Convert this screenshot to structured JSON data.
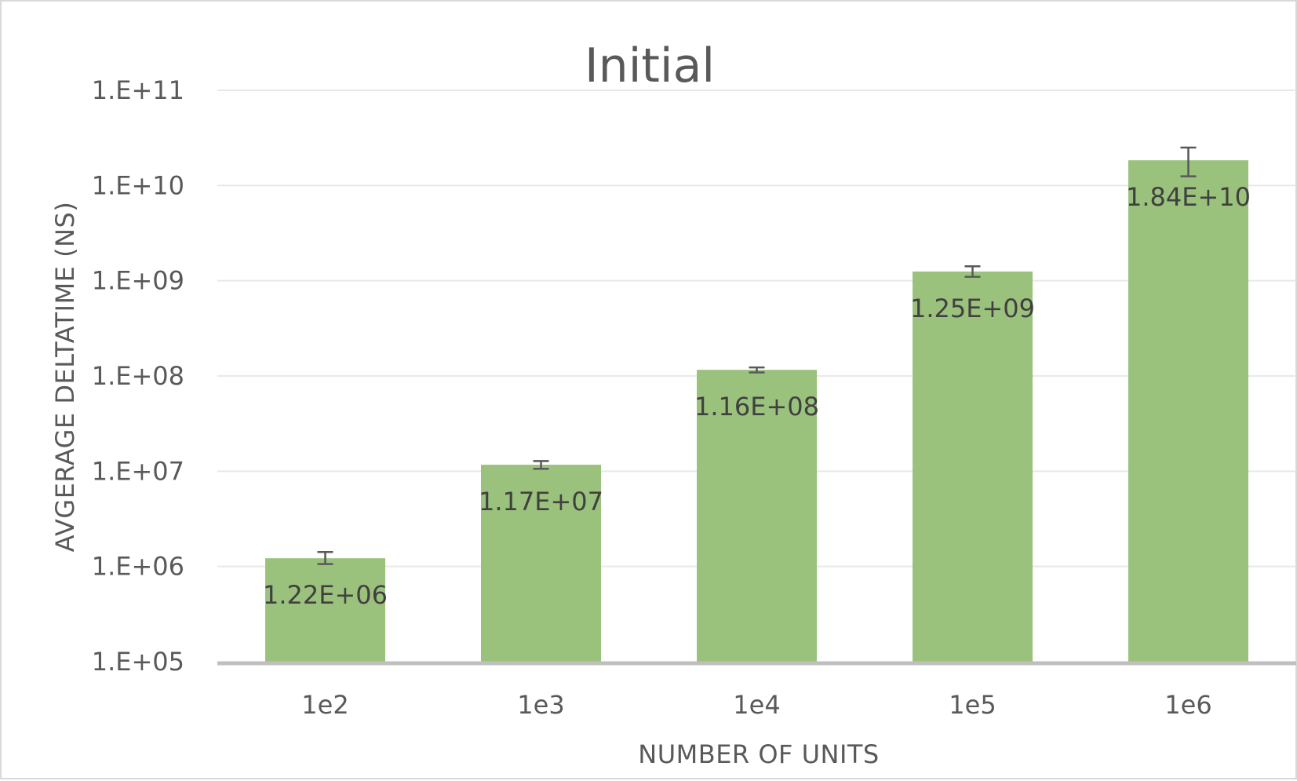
{
  "chart_data": {
    "type": "bar",
    "title": "Initial",
    "xlabel": "NUMBER OF UNITS",
    "ylabel": "AVGERAGE DELTATIME (NS)",
    "y_scale": "log",
    "ylim": [
      100000,
      100000000000
    ],
    "y_ticks": [
      100000,
      1000000,
      10000000,
      100000000,
      1000000000,
      10000000000,
      100000000000
    ],
    "y_tick_labels": [
      "1.E+05",
      "1.E+06",
      "1.E+07",
      "1.E+08",
      "1.E+09",
      "1.E+10",
      "1.E+11"
    ],
    "categories": [
      "1e2",
      "1e3",
      "1e4",
      "1e5",
      "1e6"
    ],
    "values": [
      1220000,
      11700000,
      116000000,
      1250000000,
      18400000000
    ],
    "data_labels": [
      "1.22E+06",
      "1.17E+07",
      "1.16E+08",
      "1.25E+09",
      "1.84E+10"
    ],
    "error_bars": {
      "lower": [
        1060000,
        10600000,
        109000000,
        1100000000,
        12500000000
      ],
      "upper": [
        1420000,
        12800000,
        123000000,
        1420000000,
        25000000000
      ]
    },
    "grid": true,
    "legend": "none",
    "colors": {
      "bar": "#9bc27d",
      "gridline": "#e8e8e8",
      "baseline": "#bfbfbf",
      "error_bar": "#595959",
      "text": "#595959",
      "label_text": "#404040"
    }
  }
}
